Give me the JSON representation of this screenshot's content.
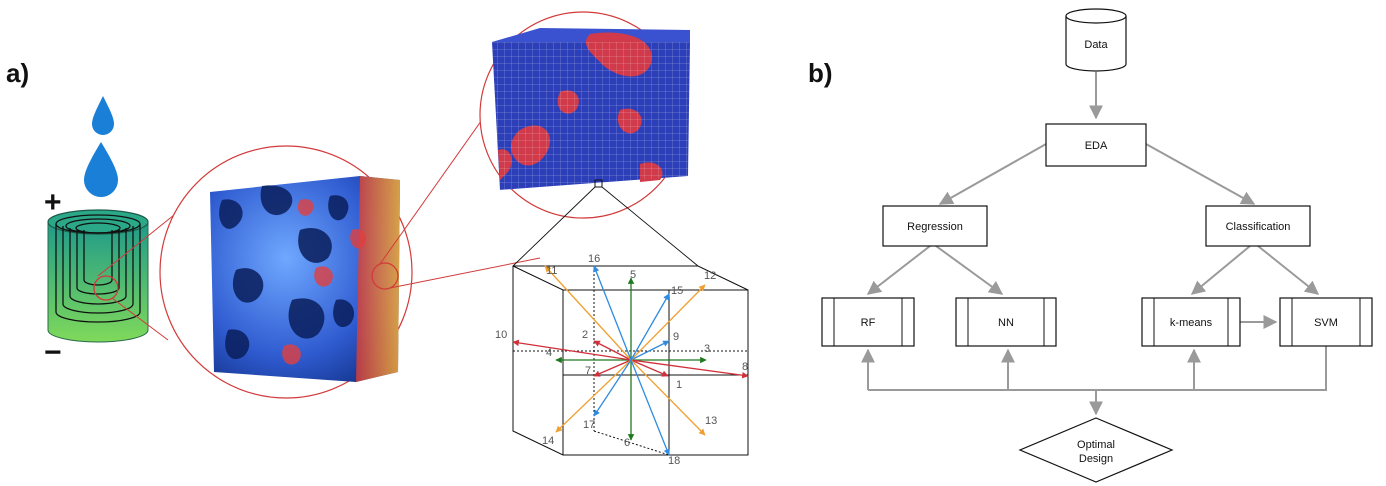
{
  "panel_a": {
    "label": "a)",
    "plus_sign": "+",
    "minus_sign": "−",
    "lattice_numbers": [
      "1",
      "2",
      "3",
      "4",
      "5",
      "6",
      "7",
      "8",
      "9",
      "10",
      "11",
      "12",
      "13",
      "14",
      "15",
      "16",
      "17",
      "18"
    ]
  },
  "panel_b": {
    "label": "b)",
    "nodes": {
      "data": "Data",
      "eda": "EDA",
      "regression": "Regression",
      "classification": "Classification",
      "rf": "RF",
      "nn": "NN",
      "kmeans": "k-means",
      "svm": "SVM",
      "optimal_line1": "Optimal",
      "optimal_line2": "Design"
    }
  },
  "colors": {
    "flow_arrow": "#9a9a9a",
    "zoom_line": "#d23a3a",
    "battery_green": "#3dbb5a",
    "droplet_blue": "#1a7fd6",
    "lattice_blue": "#2f8be0",
    "lattice_orange": "#f0a030",
    "lattice_green": "#1f7a1f",
    "lattice_red": "#d0303a"
  }
}
